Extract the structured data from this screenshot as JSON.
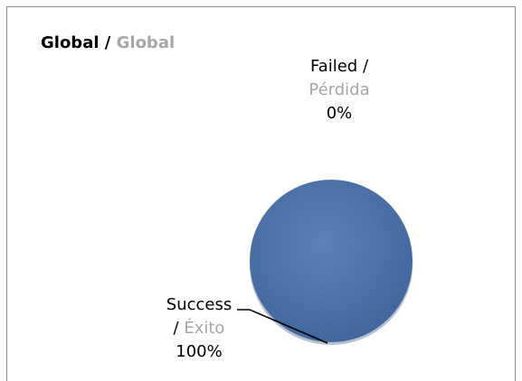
{
  "chart_data": {
    "type": "pie",
    "title": {
      "primary": "Global",
      "separator": " / ",
      "secondary": "Global"
    },
    "slices": [
      {
        "label_primary": "Failed /",
        "label_secondary": "Pérdida",
        "value_label": "0%",
        "value": 0
      },
      {
        "label_primary": "Success",
        "label_secondary": "Éxito",
        "label_prefix": "/ ",
        "value_label": "100%",
        "value": 100
      }
    ],
    "colors": {
      "success": "#4a6fa5",
      "success_shadow": "#3a5a8a",
      "failed": "#c0504d",
      "leader": "#000000"
    }
  }
}
